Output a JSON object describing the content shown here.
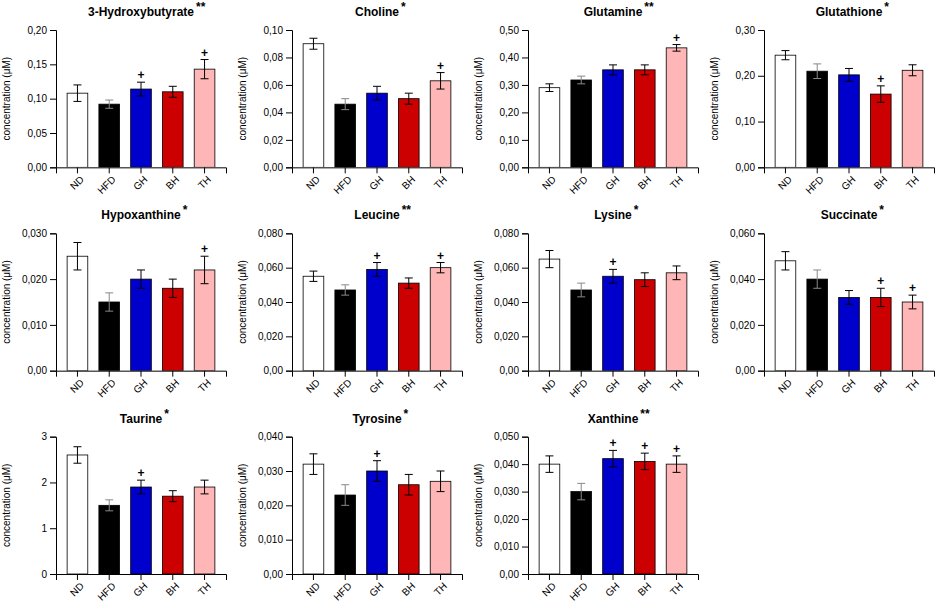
{
  "chart_data": [
    {
      "type": "bar",
      "title": "3-Hydroxybutyrate",
      "y_label": "concentration (μM)",
      "categories": [
        "ND",
        "HFD",
        "GH",
        "BH",
        "TH"
      ],
      "values": [
        0.108,
        0.092,
        0.114,
        0.11,
        0.143
      ],
      "errors": [
        0.012,
        0.006,
        0.01,
        0.008,
        0.014
      ],
      "colors": [
        "white",
        "black",
        "#0000cc",
        "#cc0000",
        "#ffb6b6"
      ],
      "ylim": [
        0,
        0.2
      ],
      "yticks": [
        {
          "value": 0.0,
          "label": "0,00"
        },
        {
          "value": 0.05,
          "label": "0,05"
        },
        {
          "value": 0.1,
          "label": "0,10"
        },
        {
          "value": 0.15,
          "label": "0,15"
        },
        {
          "value": 0.2,
          "label": "0,20"
        }
      ],
      "annotations": [
        {
          "text": "**"
        },
        {
          "text": "+",
          "category": "GH"
        },
        {
          "text": "+",
          "category": "TH"
        }
      ],
      "grid": false
    },
    {
      "type": "bar",
      "title": "Choline",
      "y_label": "concentration (μM)",
      "categories": [
        "ND",
        "HFD",
        "GH",
        "BH",
        "TH"
      ],
      "values": [
        0.09,
        0.046,
        0.054,
        0.05,
        0.063
      ],
      "errors": [
        0.004,
        0.004,
        0.005,
        0.004,
        0.006
      ],
      "colors": [
        "white",
        "black",
        "#0000cc",
        "#cc0000",
        "#ffb6b6"
      ],
      "ylim": [
        0,
        0.1
      ],
      "yticks": [
        {
          "value": 0.0,
          "label": "0,00"
        },
        {
          "value": 0.02,
          "label": "0,02"
        },
        {
          "value": 0.04,
          "label": "0,04"
        },
        {
          "value": 0.06,
          "label": "0,06"
        },
        {
          "value": 0.08,
          "label": "0,08"
        },
        {
          "value": 0.1,
          "label": "0,10"
        }
      ],
      "annotations": [
        {
          "text": "*"
        },
        {
          "text": "+",
          "category": "TH"
        }
      ],
      "grid": false
    },
    {
      "type": "bar",
      "title": "Glutamine",
      "y_label": "concentration (μM)",
      "categories": [
        "ND",
        "HFD",
        "GH",
        "BH",
        "TH"
      ],
      "values": [
        0.29,
        0.318,
        0.355,
        0.355,
        0.435
      ],
      "errors": [
        0.014,
        0.014,
        0.018,
        0.018,
        0.012
      ],
      "colors": [
        "white",
        "black",
        "#0000cc",
        "#cc0000",
        "#ffb6b6"
      ],
      "ylim": [
        0,
        0.5
      ],
      "yticks": [
        {
          "value": 0.0,
          "label": "0,00"
        },
        {
          "value": 0.1,
          "label": "0,10"
        },
        {
          "value": 0.2,
          "label": "0,20"
        },
        {
          "value": 0.3,
          "label": "0,30"
        },
        {
          "value": 0.4,
          "label": "0,40"
        },
        {
          "value": 0.5,
          "label": "0,50"
        }
      ],
      "annotations": [
        {
          "text": "**"
        },
        {
          "text": "+",
          "category": "TH"
        }
      ],
      "grid": false
    },
    {
      "type": "bar",
      "title": "Glutathione",
      "y_label": "concentration (μM)",
      "categories": [
        "ND",
        "HFD",
        "GH",
        "BH",
        "TH"
      ],
      "values": [
        0.245,
        0.21,
        0.202,
        0.16,
        0.212
      ],
      "errors": [
        0.01,
        0.016,
        0.014,
        0.018,
        0.012
      ],
      "colors": [
        "white",
        "black",
        "#0000cc",
        "#cc0000",
        "#ffb6b6"
      ],
      "ylim": [
        0,
        0.3
      ],
      "yticks": [
        {
          "value": 0.0,
          "label": "0,00"
        },
        {
          "value": 0.1,
          "label": "0,10"
        },
        {
          "value": 0.2,
          "label": "0,20"
        },
        {
          "value": 0.3,
          "label": "0,30"
        }
      ],
      "annotations": [
        {
          "text": "*"
        },
        {
          "text": "+",
          "category": "BH"
        }
      ],
      "grid": false
    },
    {
      "type": "bar",
      "title": "Hypoxanthine",
      "y_label": "concentration (μM)",
      "categories": [
        "ND",
        "HFD",
        "GH",
        "BH",
        "TH"
      ],
      "values": [
        0.025,
        0.015,
        0.02,
        0.018,
        0.022
      ],
      "errors": [
        0.003,
        0.002,
        0.002,
        0.002,
        0.003
      ],
      "colors": [
        "white",
        "black",
        "#0000cc",
        "#cc0000",
        "#ffb6b6"
      ],
      "ylim": [
        0,
        0.03
      ],
      "yticks": [
        {
          "value": 0.0,
          "label": "0,00"
        },
        {
          "value": 0.01,
          "label": "0,010"
        },
        {
          "value": 0.02,
          "label": "0,020"
        },
        {
          "value": 0.03,
          "label": "0,030"
        }
      ],
      "annotations": [
        {
          "text": "*"
        },
        {
          "text": "+",
          "category": "TH"
        }
      ],
      "grid": false
    },
    {
      "type": "bar",
      "title": "Leucine",
      "y_label": "concentration (μM)",
      "categories": [
        "ND",
        "HFD",
        "GH",
        "BH",
        "TH"
      ],
      "values": [
        0.055,
        0.047,
        0.059,
        0.051,
        0.06
      ],
      "errors": [
        0.003,
        0.003,
        0.004,
        0.003,
        0.003
      ],
      "colors": [
        "white",
        "black",
        "#0000cc",
        "#cc0000",
        "#ffb6b6"
      ],
      "ylim": [
        0,
        0.08
      ],
      "yticks": [
        {
          "value": 0.0,
          "label": "0,00"
        },
        {
          "value": 0.02,
          "label": "0,020"
        },
        {
          "value": 0.04,
          "label": "0,040"
        },
        {
          "value": 0.06,
          "label": "0,060"
        },
        {
          "value": 0.08,
          "label": "0,080"
        }
      ],
      "annotations": [
        {
          "text": "**"
        },
        {
          "text": "+",
          "category": "GH"
        },
        {
          "text": "+",
          "category": "TH"
        }
      ],
      "grid": false
    },
    {
      "type": "bar",
      "title": "Lysine",
      "y_label": "concentration (μM)",
      "categories": [
        "ND",
        "HFD",
        "GH",
        "BH",
        "TH"
      ],
      "values": [
        0.065,
        0.047,
        0.055,
        0.053,
        0.057
      ],
      "errors": [
        0.005,
        0.004,
        0.004,
        0.004,
        0.004
      ],
      "colors": [
        "white",
        "black",
        "#0000cc",
        "#cc0000",
        "#ffb6b6"
      ],
      "ylim": [
        0,
        0.08
      ],
      "yticks": [
        {
          "value": 0.0,
          "label": "0,00"
        },
        {
          "value": 0.02,
          "label": "0,020"
        },
        {
          "value": 0.04,
          "label": "0,040"
        },
        {
          "value": 0.06,
          "label": "0,060"
        },
        {
          "value": 0.08,
          "label": "0,080"
        }
      ],
      "annotations": [
        {
          "text": "*"
        },
        {
          "text": "+",
          "category": "GH"
        }
      ],
      "grid": false
    },
    {
      "type": "bar",
      "title": "Succinate",
      "y_label": "concentration (μM)",
      "categories": [
        "ND",
        "HFD",
        "GH",
        "BH",
        "TH"
      ],
      "values": [
        0.048,
        0.04,
        0.032,
        0.032,
        0.03
      ],
      "errors": [
        0.004,
        0.004,
        0.003,
        0.004,
        0.003
      ],
      "colors": [
        "white",
        "black",
        "#0000cc",
        "#cc0000",
        "#ffb6b6"
      ],
      "ylim": [
        0,
        0.06
      ],
      "yticks": [
        {
          "value": 0.0,
          "label": "0,00"
        },
        {
          "value": 0.02,
          "label": "0,020"
        },
        {
          "value": 0.04,
          "label": "0,040"
        },
        {
          "value": 0.06,
          "label": "0,060"
        }
      ],
      "annotations": [
        {
          "text": "*"
        },
        {
          "text": "+",
          "category": "BH"
        },
        {
          "text": "+",
          "category": "TH"
        }
      ],
      "grid": false
    },
    {
      "type": "bar",
      "title": "Taurine",
      "y_label": "concentration (μM)",
      "categories": [
        "ND",
        "HFD",
        "GH",
        "BH",
        "TH"
      ],
      "values": [
        2.6,
        1.5,
        1.9,
        1.7,
        1.9
      ],
      "errors": [
        0.18,
        0.12,
        0.15,
        0.12,
        0.15
      ],
      "colors": [
        "white",
        "black",
        "#0000cc",
        "#cc0000",
        "#ffb6b6"
      ],
      "ylim": [
        0,
        3
      ],
      "yticks": [
        0,
        1,
        2,
        3
      ],
      "annotations": [
        {
          "text": "*"
        },
        {
          "text": "+",
          "category": "GH"
        }
      ],
      "grid": false
    },
    {
      "type": "bar",
      "title": "Tyrosine",
      "y_label": "concentration (μM)",
      "categories": [
        "ND",
        "HFD",
        "GH",
        "BH",
        "TH"
      ],
      "values": [
        0.032,
        0.023,
        0.03,
        0.026,
        0.027
      ],
      "errors": [
        0.003,
        0.003,
        0.003,
        0.003,
        0.003
      ],
      "colors": [
        "white",
        "black",
        "#0000cc",
        "#cc0000",
        "#ffb6b6"
      ],
      "ylim": [
        0,
        0.04
      ],
      "yticks": [
        {
          "value": 0.0,
          "label": "0,00"
        },
        {
          "value": 0.01,
          "label": "0,010"
        },
        {
          "value": 0.02,
          "label": "0,020"
        },
        {
          "value": 0.03,
          "label": "0,030"
        },
        {
          "value": 0.04,
          "label": "0,040"
        }
      ],
      "annotations": [
        {
          "text": "*"
        },
        {
          "text": "+",
          "category": "GH"
        }
      ],
      "grid": false
    },
    {
      "type": "bar",
      "title": "Xanthine",
      "y_label": "concentration (μM)",
      "categories": [
        "ND",
        "HFD",
        "GH",
        "BH",
        "TH"
      ],
      "values": [
        0.04,
        0.03,
        0.042,
        0.041,
        0.04
      ],
      "errors": [
        0.003,
        0.003,
        0.003,
        0.003,
        0.003
      ],
      "colors": [
        "white",
        "black",
        "#0000cc",
        "#cc0000",
        "#ffb6b6"
      ],
      "ylim": [
        0,
        0.05
      ],
      "yticks": [
        {
          "value": 0.0,
          "label": "0,00"
        },
        {
          "value": 0.01,
          "label": "0,010"
        },
        {
          "value": 0.02,
          "label": "0,020"
        },
        {
          "value": 0.03,
          "label": "0,030"
        },
        {
          "value": 0.04,
          "label": "0,040"
        },
        {
          "value": 0.05,
          "label": "0,050"
        }
      ],
      "annotations": [
        {
          "text": "**"
        },
        {
          "text": "+",
          "category": "GH"
        },
        {
          "text": "+",
          "category": "BH"
        },
        {
          "text": "+",
          "category": "TH"
        }
      ],
      "grid": false
    }
  ]
}
